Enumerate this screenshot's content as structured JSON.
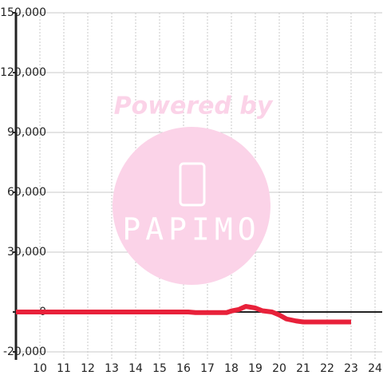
{
  "chart_data": {
    "type": "line",
    "x": [
      9,
      16.2,
      16.5,
      17.8,
      18,
      18.3,
      18.6,
      19,
      19.3,
      19.7,
      20,
      20.3,
      20.7,
      21,
      23
    ],
    "series": [
      {
        "color": "#e8213a",
        "values": [
          0,
          0,
          -300,
          -300,
          500,
          1200,
          2800,
          2000,
          600,
          0,
          -1500,
          -3500,
          -4500,
          -5000,
          -5000
        ]
      }
    ],
    "xlim": [
      9,
      24.3
    ],
    "xticks": [
      10,
      11,
      12,
      13,
      14,
      15,
      16,
      17,
      18,
      19,
      20,
      21,
      22,
      23,
      24
    ],
    "ylim": [
      -20000,
      150000
    ],
    "yticks": [
      {
        "value": -20000,
        "label": "-20,000"
      },
      0,
      {
        "value": 30000,
        "label": "30,000"
      },
      {
        "value": 60000,
        "label": "60,000"
      },
      {
        "value": 90000,
        "label": "90,000"
      },
      {
        "value": 120000,
        "label": "120,000"
      },
      {
        "value": 150000,
        "label": "150,000"
      }
    ],
    "grid": true,
    "watermark": {
      "top": "Powered by",
      "logo": "PAPIMO"
    }
  }
}
